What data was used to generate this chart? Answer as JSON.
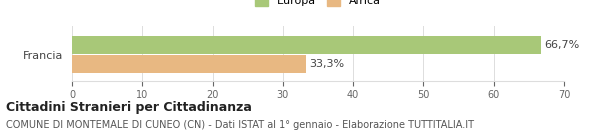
{
  "categories": [
    "Francia"
  ],
  "series": [
    {
      "label": "Europa",
      "value": 66.7,
      "color": "#a8c878",
      "pct": "66,7%"
    },
    {
      "label": "Africa",
      "value": 33.3,
      "color": "#e8b882",
      "pct": "33,3%"
    }
  ],
  "xlim": [
    0,
    70
  ],
  "xticks": [
    0,
    10,
    20,
    30,
    40,
    50,
    60,
    70
  ],
  "bar_height": 0.35,
  "title": "Cittadini Stranieri per Cittadinanza",
  "subtitle": "COMUNE DI MONTEMALE DI CUNEO (CN) - Dati ISTAT al 1° gennaio - Elaborazione TUTTITALIA.IT",
  "title_fontsize": 9,
  "subtitle_fontsize": 7,
  "legend_fontsize": 8,
  "tick_fontsize": 7,
  "label_fontsize": 8,
  "background_color": "#ffffff",
  "grid_color": "#dddddd"
}
